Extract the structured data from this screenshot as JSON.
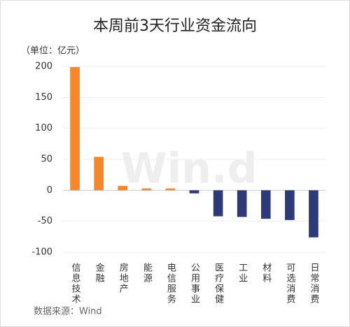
{
  "chart_data": {
    "type": "bar",
    "title": "本周前3天行业资金流向",
    "unit_label": "（单位：亿元）",
    "source": "数据来源：Wind",
    "watermark": "Win.d",
    "categories": [
      "信息技术",
      "金融",
      "房地产",
      "能源",
      "电信服务",
      "公用事业",
      "医疗保健",
      "工业",
      "材料",
      "可选消费",
      "日常消费"
    ],
    "values": [
      199,
      54,
      7,
      3,
      3,
      -5,
      -42,
      -43,
      -46,
      -48,
      -76
    ],
    "positive_color": "#f5862a",
    "negative_color": "#2e3a78",
    "ylim": [
      -100,
      200
    ],
    "yticks": [
      -100,
      -50,
      0,
      50,
      100,
      150,
      200
    ],
    "grid": true
  }
}
